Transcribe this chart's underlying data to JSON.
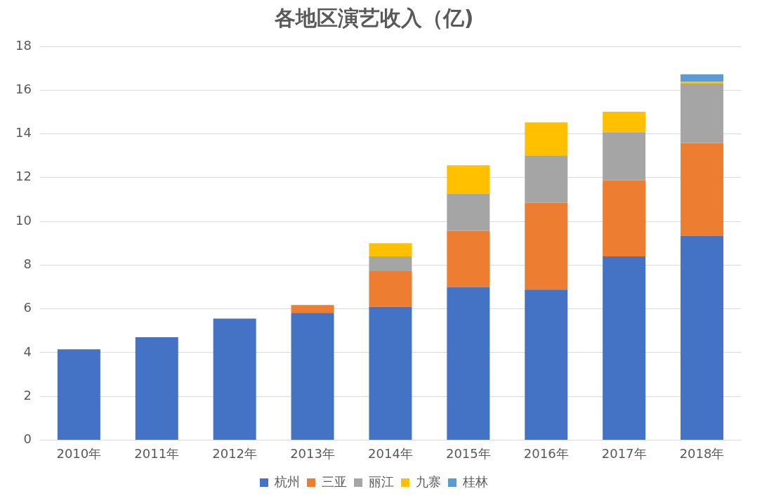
{
  "chart_data": {
    "type": "bar",
    "title": "各地区演艺收入（亿)",
    "stacked": true,
    "categories": [
      "2010年",
      "2011年",
      "2012年",
      "2013年",
      "2014年",
      "2015年",
      "2016年",
      "2017年",
      "2018年"
    ],
    "series": [
      {
        "name": "杭州",
        "color": "#4472c4",
        "values": [
          4.15,
          4.7,
          5.55,
          5.82,
          6.09,
          7.0,
          6.88,
          8.4,
          9.34
        ]
      },
      {
        "name": "三亚",
        "color": "#ed7d31",
        "values": [
          null,
          null,
          null,
          0.35,
          1.63,
          2.57,
          3.97,
          3.48,
          4.24
        ]
      },
      {
        "name": "丽江",
        "color": "#a5a5a5",
        "values": [
          null,
          null,
          null,
          null,
          0.68,
          1.7,
          2.16,
          2.19,
          2.72
        ]
      },
      {
        "name": "九寨",
        "color": "#ffc000",
        "values": [
          null,
          null,
          null,
          null,
          0.6,
          1.29,
          1.51,
          0.94,
          0.08
        ]
      },
      {
        "name": "桂林",
        "color": "#5b9bd5",
        "values": [
          null,
          null,
          null,
          null,
          null,
          null,
          null,
          null,
          0.34
        ]
      }
    ],
    "ylim": [
      0,
      18
    ],
    "yticks": [
      0,
      2,
      4,
      6,
      8,
      10,
      12,
      14,
      16,
      18
    ],
    "grid": "y",
    "legend": "bottom"
  }
}
